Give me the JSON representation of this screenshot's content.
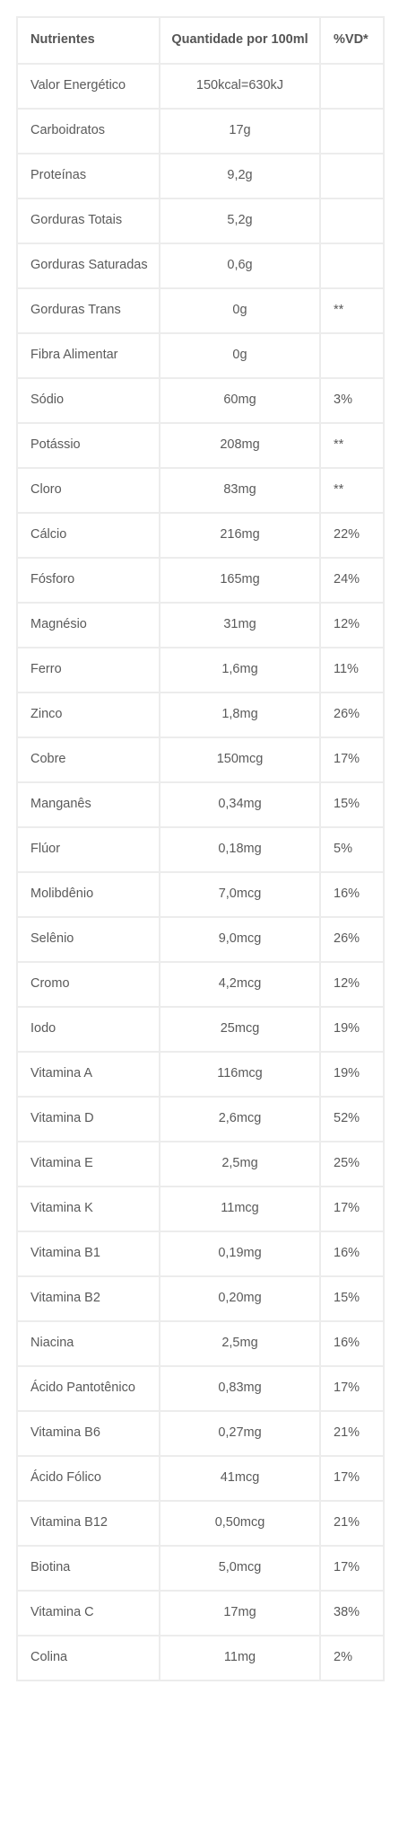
{
  "table": {
    "headers": [
      "Nutrientes",
      "Quantidade por 100ml",
      "%VD*"
    ],
    "rows": [
      [
        "Valor Energético",
        "150kcal=630kJ",
        ""
      ],
      [
        "Carboidratos",
        "17g",
        ""
      ],
      [
        "Proteínas",
        "9,2g",
        ""
      ],
      [
        "Gorduras Totais",
        "5,2g",
        ""
      ],
      [
        "Gorduras Saturadas",
        "0,6g",
        ""
      ],
      [
        "Gorduras Trans",
        "0g",
        "**"
      ],
      [
        "Fibra Alimentar",
        "0g",
        ""
      ],
      [
        "Sódio",
        "60mg",
        "3%"
      ],
      [
        "Potássio",
        "208mg",
        "**"
      ],
      [
        "Cloro",
        "83mg",
        "**"
      ],
      [
        "Cálcio",
        "216mg",
        "22%"
      ],
      [
        "Fósforo",
        "165mg",
        "24%"
      ],
      [
        "Magnésio",
        "31mg",
        "12%"
      ],
      [
        "Ferro",
        "1,6mg",
        "11%"
      ],
      [
        "Zinco",
        "1,8mg",
        "26%"
      ],
      [
        "Cobre",
        "150mcg",
        "17%"
      ],
      [
        "Manganês",
        "0,34mg",
        "15%"
      ],
      [
        "Flúor",
        "0,18mg",
        "5%"
      ],
      [
        "Molibdênio",
        "7,0mcg",
        "16%"
      ],
      [
        "Selênio",
        "9,0mcg",
        "26%"
      ],
      [
        "Cromo",
        "4,2mcg",
        "12%"
      ],
      [
        "Iodo",
        "25mcg",
        "19%"
      ],
      [
        "Vitamina A",
        "116mcg",
        "19%"
      ],
      [
        "Vitamina D",
        "2,6mcg",
        "52%"
      ],
      [
        "Vitamina E",
        "2,5mg",
        "25%"
      ],
      [
        "Vitamina K",
        "11mcg",
        "17%"
      ],
      [
        "Vitamina B1",
        "0,19mg",
        "16%"
      ],
      [
        "Vitamina B2",
        "0,20mg",
        "15%"
      ],
      [
        "Niacina",
        "2,5mg",
        "16%"
      ],
      [
        "Ácido Pantotênico",
        "0,83mg",
        "17%"
      ],
      [
        "Vitamina B6",
        "0,27mg",
        "21%"
      ],
      [
        "Ácido Fólico",
        "41mcg",
        "17%"
      ],
      [
        "Vitamina B12",
        "0,50mcg",
        "21%"
      ],
      [
        "Biotina",
        "5,0mcg",
        "17%"
      ],
      [
        "Vitamina C",
        "17mg",
        "38%"
      ],
      [
        "Colina",
        "11mg",
        "2%"
      ]
    ]
  },
  "colors": {
    "border": "#ececec",
    "text": "#5a5a5a",
    "header_text": "#555555",
    "background": "#ffffff"
  }
}
